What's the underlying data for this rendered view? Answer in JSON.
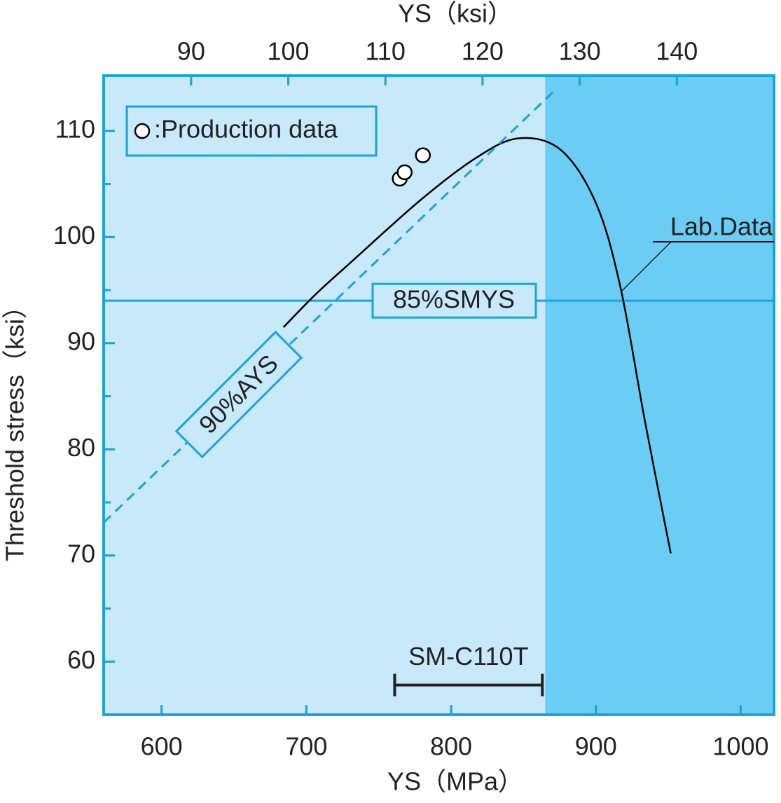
{
  "chart_data": {
    "type": "line",
    "x_title": "YS（MPa）",
    "x2_title": "YS（ksi）",
    "y_title": "Threshold stress（ksi）",
    "xlim": [
      560,
      1023
    ],
    "xticks": [
      600,
      700,
      800,
      900,
      1000
    ],
    "x2lim": [
      81,
      150
    ],
    "x2ticks": [
      90,
      100,
      110,
      120,
      130,
      140
    ],
    "ylim": [
      55,
      115.2
    ],
    "yticks": [
      60,
      70,
      80,
      90,
      100,
      110
    ],
    "yminor": [
      65,
      75,
      85,
      95,
      105
    ],
    "shade_from": 865,
    "colors": {
      "light": "#c8e9fa",
      "dark": "#6ccdf4",
      "frame": "#1aa3dc"
    },
    "series": [
      {
        "name": "Lab.Data",
        "kind": "line",
        "color": "#000000",
        "x": [
          684.2,
          706.4,
          730.6,
          779,
          817.7,
          846.7,
          875.8,
          900,
          916.9,
          933.8,
          951.7
        ],
        "values": [
          91.5,
          94.6,
          97.6,
          103.5,
          107.5,
          109.3,
          108.2,
          103.2,
          95.3,
          82.7,
          70.2
        ]
      },
      {
        "name": ":Production data",
        "kind": "scatter",
        "color": "#000000",
        "x": [
          764.5,
          767.9,
          780.5
        ],
        "values": [
          105.5,
          106.1,
          107.7
        ]
      },
      {
        "name": "90%AYS",
        "kind": "dashed",
        "color": "#1aa3dc",
        "x": [
          560,
          873
        ],
        "values": [
          73.1,
          114
        ]
      }
    ],
    "hline": {
      "label": "85%SMYS",
      "value": 94
    },
    "range": {
      "label": "SM-C110T",
      "x": [
        761,
        863
      ],
      "y": 57.8
    }
  }
}
